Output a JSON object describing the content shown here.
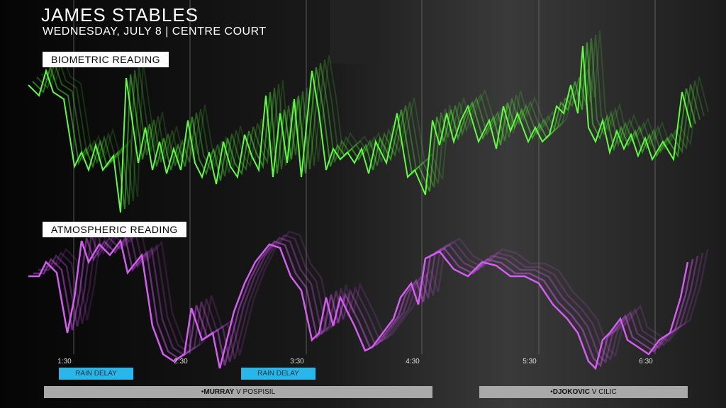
{
  "header": {
    "title": "JAMES STABLES",
    "subtitle": "WEDNESDAY, JULY 8 | CENTRE COURT"
  },
  "panels": [
    {
      "label": "BIOMETRIC READING"
    },
    {
      "label": "ATMOSPHERIC READING"
    }
  ],
  "time_axis": {
    "ticks": [
      "1:30",
      "2:30",
      "3:30",
      "4:30",
      "5:30",
      "6:30"
    ]
  },
  "events": [
    {
      "label": "RAIN DELAY"
    },
    {
      "label": "RAIN DELAY"
    }
  ],
  "matches": [
    {
      "player": "MURRAY",
      "opponent": "V POSPISIL"
    },
    {
      "player": "DJOKOVIC",
      "opponent": "V CILIC"
    }
  ]
}
